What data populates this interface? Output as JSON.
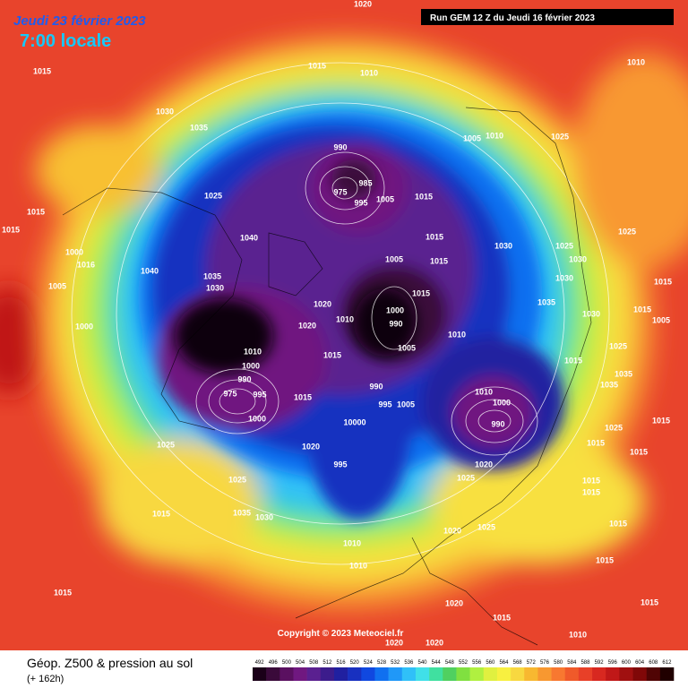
{
  "header": {
    "date": "Jeudi 23 février 2023",
    "time": "7:00 locale",
    "run": "Run GEM 12 Z du Jeudi 16 février 2023"
  },
  "copyright": "Copyright © 2023 Meteociel.fr",
  "footer": {
    "title": "Géop. Z500 & pression au sol",
    "lead": "(+ 162h)"
  },
  "colorbar": {
    "values": [
      492,
      496,
      500,
      504,
      508,
      512,
      516,
      520,
      524,
      528,
      532,
      536,
      540,
      544,
      548,
      552,
      556,
      560,
      564,
      568,
      572,
      576,
      580,
      584,
      588,
      592,
      596,
      600,
      604,
      608,
      612
    ],
    "colors": [
      "#1a0018",
      "#3a0a3a",
      "#5a1060",
      "#701880",
      "#5a2090",
      "#3c1c8c",
      "#2020a0",
      "#1830c0",
      "#1048e0",
      "#1070f0",
      "#2098f8",
      "#30c0f8",
      "#40e0e8",
      "#40e0a0",
      "#50d060",
      "#80e040",
      "#b0f040",
      "#e0f040",
      "#f8f040",
      "#f8d840",
      "#f8b830",
      "#f89830",
      "#f87830",
      "#f05a2a",
      "#e84028",
      "#d82820",
      "#c01818",
      "#a01010",
      "#800808",
      "#500404",
      "#200000"
    ]
  },
  "pressure_labels": [
    "1020",
    "1015",
    "1015",
    "1010",
    "1010",
    "1030",
    "1035",
    "1005",
    "1010",
    "1025",
    "990",
    "985",
    "975",
    "995",
    "1005",
    "1015",
    "1025",
    "1015",
    "1015",
    "1040",
    "1015",
    "1030",
    "1025",
    "1025",
    "1000",
    "1016",
    "1005",
    "1015",
    "1030",
    "1040",
    "1035",
    "1005",
    "1030",
    "1030",
    "1015",
    "1015",
    "1020",
    "1035",
    "1030",
    "1015",
    "1005",
    "1010",
    "1000",
    "990",
    "1000",
    "1020",
    "1010",
    "1025",
    "1010",
    "1005",
    "1015",
    "1015",
    "1000",
    "1035",
    "990",
    "990",
    "1010",
    "1035",
    "1015",
    "975",
    "995",
    "1000",
    "995",
    "1005",
    "990",
    "1000",
    "10000",
    "1015",
    "1025",
    "1025",
    "1020",
    "1015",
    "1015",
    "995",
    "1020",
    "1025",
    "1025",
    "1015",
    "1015",
    "1015",
    "1035",
    "1030",
    "1015",
    "1020",
    "1025",
    "1010",
    "1010",
    "1015",
    "1015",
    "1020",
    "1015",
    "1015",
    "1020",
    "1020",
    "1010"
  ]
}
